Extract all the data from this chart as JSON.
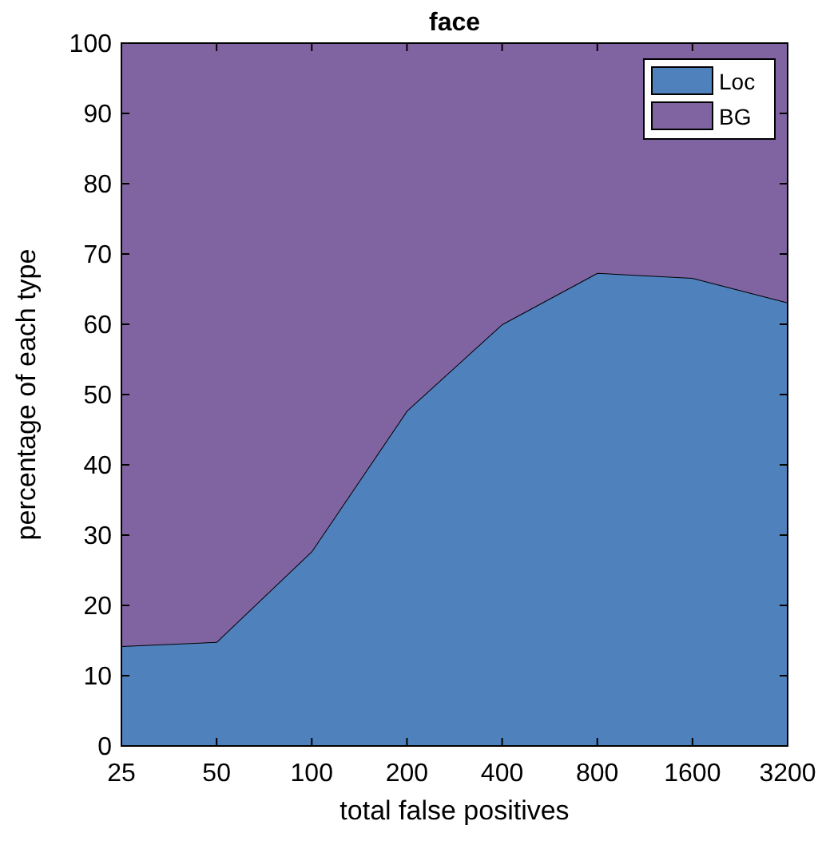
{
  "chart_data": {
    "type": "area",
    "title": "face",
    "xlabel": "total false positives",
    "ylabel": "percentage of each type",
    "categories": [
      "25",
      "50",
      "100",
      "200",
      "400",
      "800",
      "1600",
      "3200"
    ],
    "stacked": true,
    "series": [
      {
        "name": "Loc",
        "color": "#4f81bd",
        "values": [
          14.2,
          14.8,
          27.7,
          47.7,
          60,
          67.3,
          66.6,
          63.1
        ]
      },
      {
        "name": "BG",
        "color": "#8064a2",
        "values": [
          85.8,
          85.2,
          72.3,
          52.3,
          40,
          32.7,
          33.4,
          36.9
        ]
      }
    ],
    "ylim": [
      0,
      100
    ],
    "yticks": [
      0,
      10,
      20,
      30,
      40,
      50,
      60,
      70,
      80,
      90,
      100
    ],
    "legend": "top right",
    "grid": false
  }
}
